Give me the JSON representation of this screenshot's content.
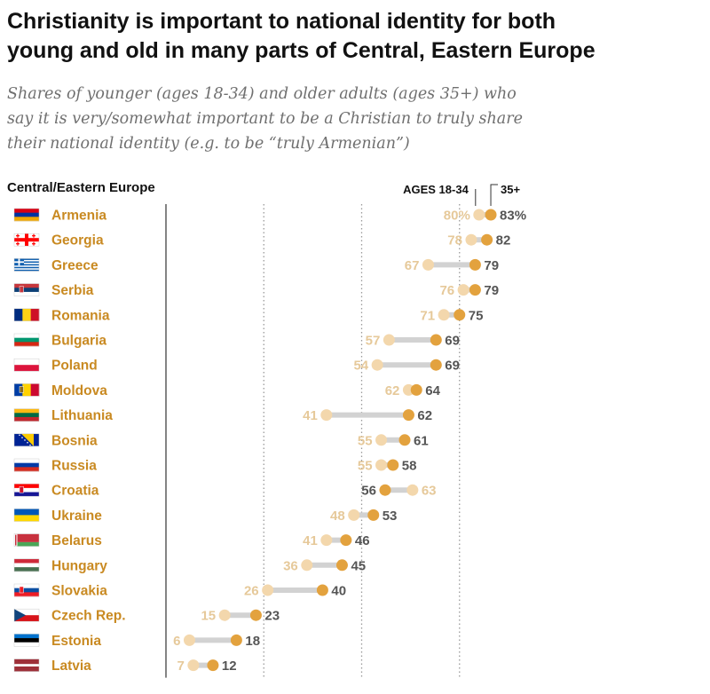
{
  "title_lines": [
    "Christianity is important to national identity for both",
    "young and old in many parts of Central, Eastern Europe"
  ],
  "subtitle_lines": [
    "Shares of younger (ages 18-34) and older adults (ages 35+) who",
    "say it is very/somewhat important to be a Christian to truly share",
    "their national identity (e.g. to be “truly Armenian”)"
  ],
  "region_label": "Central/Eastern Europe",
  "legend": {
    "young": "AGES 18-34",
    "old": "35+"
  },
  "colors": {
    "young": "#f3d7ac",
    "old": "#e3a23e",
    "label": "#c98a22",
    "bar": "#d2d2d2",
    "grid": "#9a9a9a",
    "axis": "#333333",
    "youngText": "#e6c99a"
  },
  "chart_data": {
    "type": "dot-range",
    "x": {
      "min": 0,
      "max": 100,
      "gridlines": [
        25,
        50,
        75
      ]
    },
    "unit_suffix_first_row": "%",
    "countries": [
      "Armenia",
      "Georgia",
      "Greece",
      "Serbia",
      "Romania",
      "Bulgaria",
      "Poland",
      "Moldova",
      "Lithuania",
      "Bosnia",
      "Russia",
      "Croatia",
      "Ukraine",
      "Belarus",
      "Hungary",
      "Slovakia",
      "Czech Rep.",
      "Estonia",
      "Latvia"
    ],
    "series": [
      {
        "name": "AGES 18-34",
        "values": [
          80,
          78,
          67,
          76,
          71,
          57,
          54,
          62,
          41,
          55,
          55,
          63,
          48,
          41,
          36,
          26,
          15,
          6,
          7
        ]
      },
      {
        "name": "35+",
        "values": [
          83,
          82,
          79,
          79,
          75,
          69,
          69,
          64,
          62,
          61,
          58,
          56,
          53,
          46,
          45,
          40,
          23,
          18,
          12
        ]
      }
    ],
    "flags": [
      "armenia-flag-icon",
      "georgia-flag-icon",
      "greece-flag-icon",
      "serbia-flag-icon",
      "romania-flag-icon",
      "bulgaria-flag-icon",
      "poland-flag-icon",
      "moldova-flag-icon",
      "lithuania-flag-icon",
      "bosnia-flag-icon",
      "russia-flag-icon",
      "croatia-flag-icon",
      "ukraine-flag-icon",
      "belarus-flag-icon",
      "hungary-flag-icon",
      "slovakia-flag-icon",
      "czech-flag-icon",
      "estonia-flag-icon",
      "latvia-flag-icon"
    ]
  }
}
